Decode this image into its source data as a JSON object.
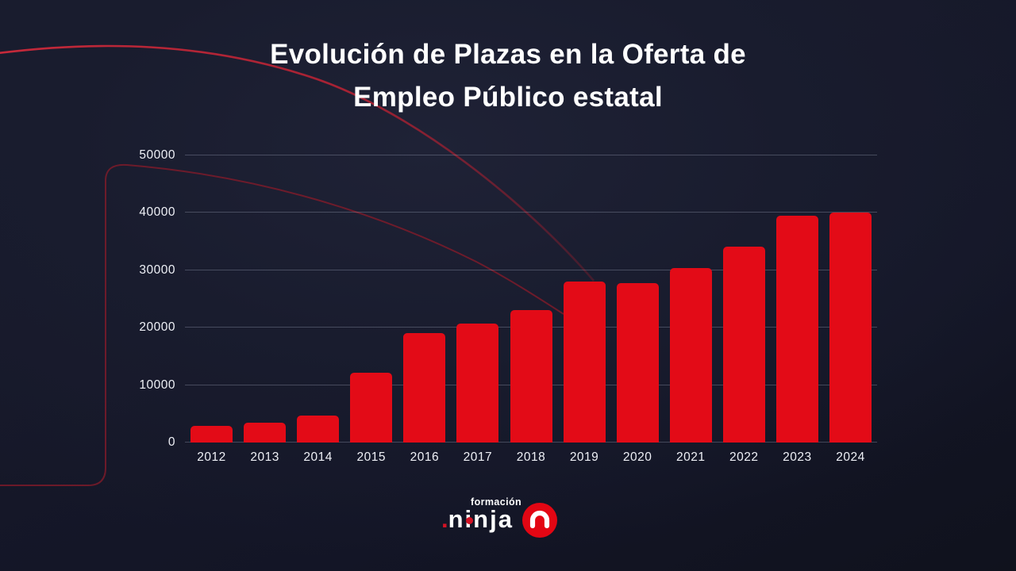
{
  "slide": {
    "title_line1": "Evolución de Plazas en la Oferta de",
    "title_line2": "Empleo Público estatal"
  },
  "chart_data": {
    "type": "bar",
    "title": "Evolución de Plazas en la Oferta de Empleo Público estatal",
    "categories": [
      "2012",
      "2013",
      "2014",
      "2015",
      "2016",
      "2017",
      "2018",
      "2019",
      "2020",
      "2021",
      "2022",
      "2023",
      "2024"
    ],
    "values": [
      2900,
      3400,
      4700,
      12100,
      19000,
      20700,
      23000,
      28000,
      27800,
      30400,
      34100,
      39500,
      40100
    ],
    "xlabel": "",
    "ylabel": "",
    "ylim": [
      0,
      50000
    ],
    "yticks": [
      0,
      10000,
      20000,
      30000,
      40000,
      50000
    ],
    "grid": true,
    "legend": "none",
    "bar_color": "#e30b17"
  },
  "footer": {
    "brand_upper": "formación",
    "brand_word": "ninja",
    "logo_icon": "ninja-n-icon"
  },
  "colors": {
    "background_dark_navy": "#171a2b",
    "bar_red": "#e30b17",
    "decor_arc_red": "#c42534",
    "decor_frame_red": "#8a1b2a",
    "text_light": "#eef0f6",
    "title_white": "#ffffff"
  }
}
